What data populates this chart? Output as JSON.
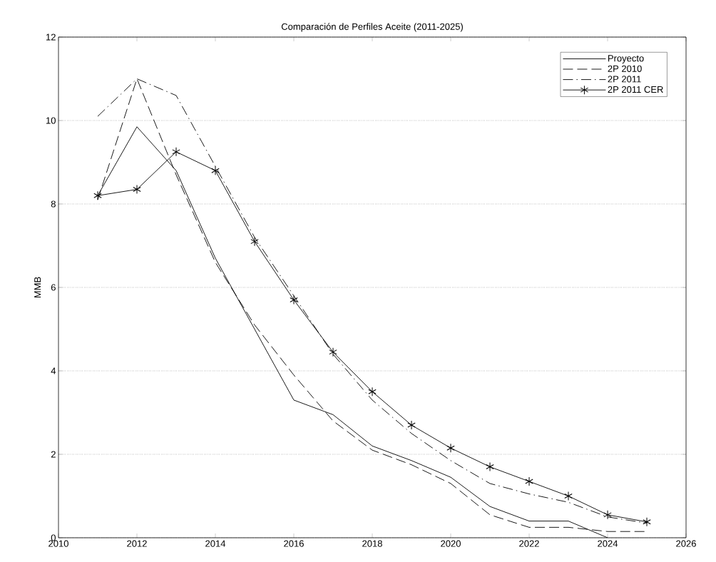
{
  "chart_data": {
    "type": "line",
    "title": "Comparación de Perfiles Aceite (2011-2025)",
    "ylabel": "MMB",
    "x": [
      2011,
      2012,
      2013,
      2014,
      2015,
      2016,
      2017,
      2018,
      2019,
      2020,
      2021,
      2022,
      2023,
      2024,
      2025
    ],
    "series": [
      {
        "name": "Proyecto",
        "color": "#000000",
        "line_style": "solid",
        "marker": "none",
        "values": [
          8.2,
          9.85,
          8.8,
          6.7,
          5.0,
          3.3,
          2.95,
          2.2,
          1.85,
          1.45,
          0.75,
          0.4,
          0.4,
          0.0,
          null
        ]
      },
      {
        "name": "2P 2010",
        "color": "#000000",
        "line_style": "dashed",
        "marker": "none",
        "values": [
          8.1,
          11.0,
          8.7,
          6.6,
          5.1,
          3.9,
          2.8,
          2.1,
          1.75,
          1.3,
          0.55,
          0.25,
          0.25,
          0.15,
          0.15
        ]
      },
      {
        "name": "2P 2011",
        "color": "#000000",
        "line_style": "dashdot",
        "marker": "none",
        "values": [
          10.1,
          11.0,
          10.6,
          8.9,
          7.2,
          5.8,
          4.4,
          3.3,
          2.5,
          1.85,
          1.3,
          1.05,
          0.85,
          0.5,
          0.35
        ]
      },
      {
        "name": "2P 2011 CER",
        "color": "#000000",
        "line_style": "solid",
        "marker": "cross",
        "values": [
          8.2,
          8.35,
          9.25,
          8.8,
          7.1,
          5.7,
          4.45,
          3.5,
          2.7,
          2.15,
          1.7,
          1.35,
          1.0,
          0.55,
          0.38
        ]
      }
    ],
    "xlim": [
      2010,
      2026
    ],
    "xticks": [
      2010,
      2012,
      2014,
      2016,
      2018,
      2020,
      2022,
      2024,
      2026
    ],
    "ylim": [
      0,
      12
    ],
    "yticks": [
      0,
      2,
      4,
      6,
      8,
      10,
      12
    ],
    "grid": "y",
    "legend": "top right"
  }
}
